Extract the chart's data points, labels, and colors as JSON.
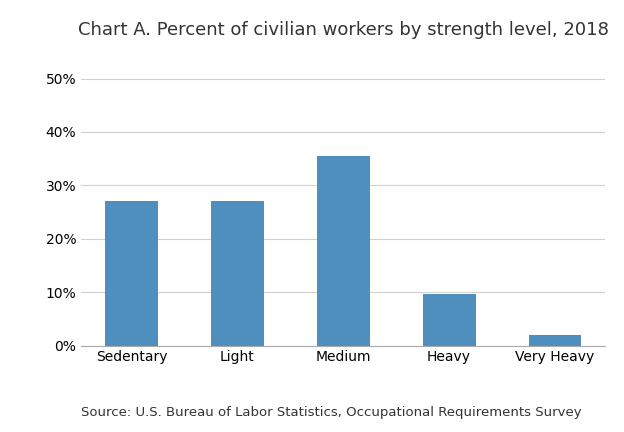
{
  "title": "Chart A. Percent of civilian workers by strength level, 2018",
  "categories": [
    "Sedentary",
    "Light",
    "Medium",
    "Heavy",
    "Very Heavy"
  ],
  "values": [
    0.27,
    0.27,
    0.355,
    0.096,
    0.02
  ],
  "bar_color": "#4e8fbe",
  "ylim": [
    0,
    0.55
  ],
  "yticks": [
    0.0,
    0.1,
    0.2,
    0.3,
    0.4,
    0.5
  ],
  "source_text": "Source: U.S. Bureau of Labor Statistics, Occupational Requirements Survey",
  "background_color": "#ffffff",
  "grid_color": "#d0d0d0",
  "title_fontsize": 13,
  "tick_fontsize": 10,
  "source_fontsize": 9.5
}
